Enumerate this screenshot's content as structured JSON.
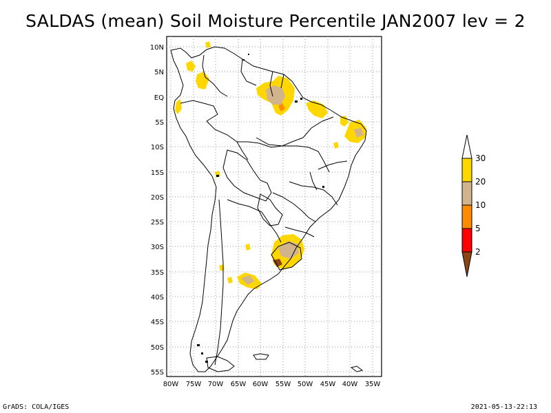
{
  "title": "SALDAS (mean) Soil Moisture Percentile JAN2007 lev = 2",
  "lat_labels": [
    "10N",
    "5N",
    "EQ",
    "5S",
    "10S",
    "15S",
    "20S",
    "25S",
    "30S",
    "35S",
    "40S",
    "45S",
    "50S",
    "55S"
  ],
  "lon_labels": [
    "80W",
    "75W",
    "70W",
    "65W",
    "60W",
    "55W",
    "50W",
    "45W",
    "40W",
    "35W"
  ],
  "legend": {
    "colors": [
      "#8b4513",
      "#ff0000",
      "#ff8c00",
      "#d2b48c",
      "#ffd700"
    ],
    "top_color": "#ffffff",
    "labels": [
      "2",
      "5",
      "10",
      "20",
      "30"
    ]
  },
  "footer": {
    "left": "GrADS: COLA/IGES",
    "right": "2021-05-13-22:13"
  }
}
